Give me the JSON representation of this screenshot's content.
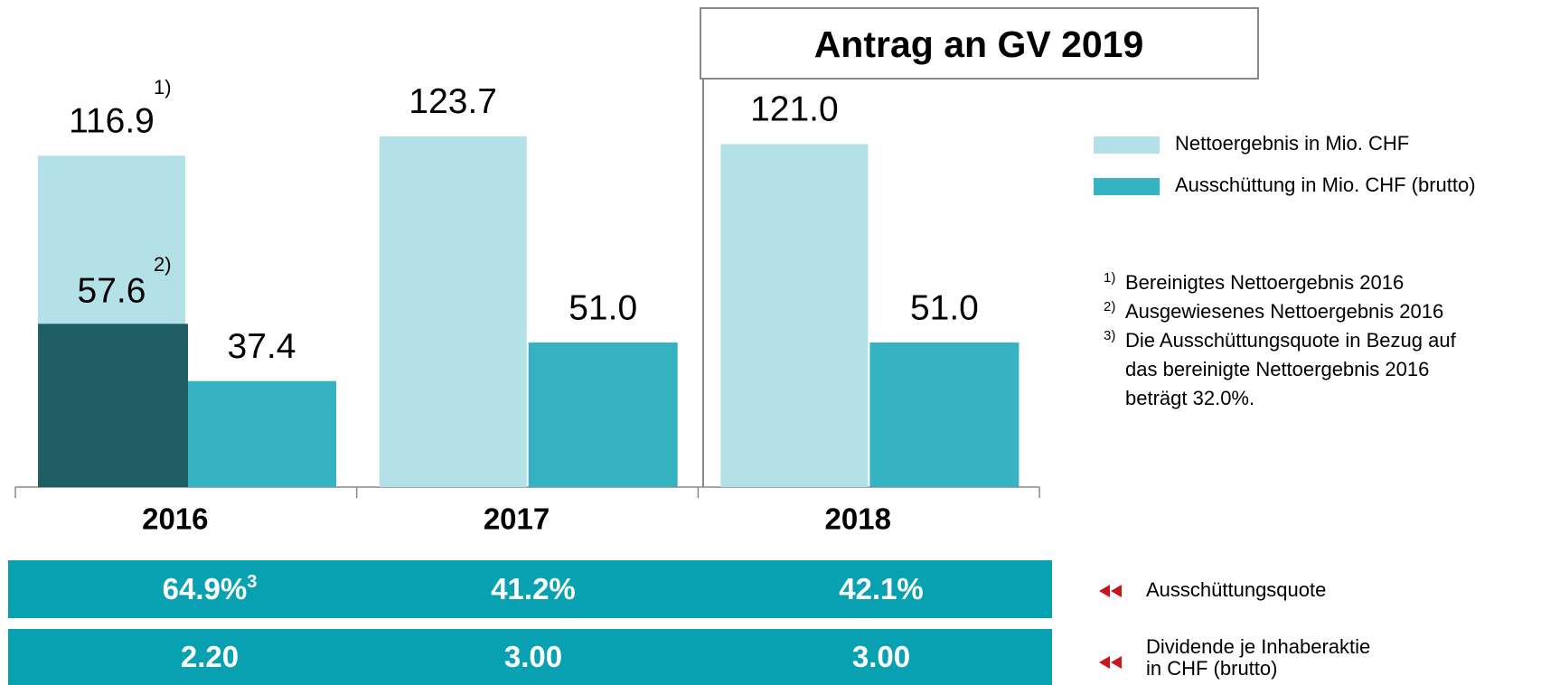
{
  "chart_data": {
    "type": "bar",
    "categories": [
      "2016",
      "2017",
      "2018"
    ],
    "series": [
      {
        "name": "Nettoergebnis in Mio. CHF",
        "color": "#b3e1e7",
        "values": [
          116.9,
          123.7,
          121.0
        ],
        "value_labels": [
          "116.9",
          "123.7",
          "121.0"
        ]
      },
      {
        "name": "Ausschüttung in Mio. CHF (brutto)",
        "color": "#35b3c2",
        "values": [
          37.4,
          51.0,
          51.0
        ],
        "value_labels": [
          "37.4",
          "51.0",
          "51.0"
        ]
      }
    ],
    "reported_2016": {
      "value": 57.6,
      "value_label": "57.6",
      "color": "#1f5e63"
    },
    "markers": [
      "1)",
      "2)"
    ],
    "proposal_box": "Antrag an GV 2019",
    "footnotes": [
      {
        "mark": "1)",
        "lines": [
          "Bereinigtes Nettoergebnis 2016"
        ]
      },
      {
        "mark": "2)",
        "lines": [
          "Ausgewiesenes Nettoergebnis 2016"
        ]
      },
      {
        "mark": "3)",
        "lines": [
          "Die Ausschüttungsquote in Bezug auf",
          "das bereinigte Nettoergebnis 2016",
          "beträgt 32.0%."
        ]
      }
    ],
    "rows": [
      {
        "label": [
          "Ausschüttungsquote"
        ],
        "values": [
          "64.9%",
          "41.2%",
          "42.1%"
        ],
        "note": "3"
      },
      {
        "label": [
          "Dividende je Inhaberaktie",
          "in CHF (brutto)"
        ],
        "values": [
          "2.20",
          "3.00",
          "3.00"
        ]
      }
    ],
    "row_color": "#08a1b2"
  }
}
